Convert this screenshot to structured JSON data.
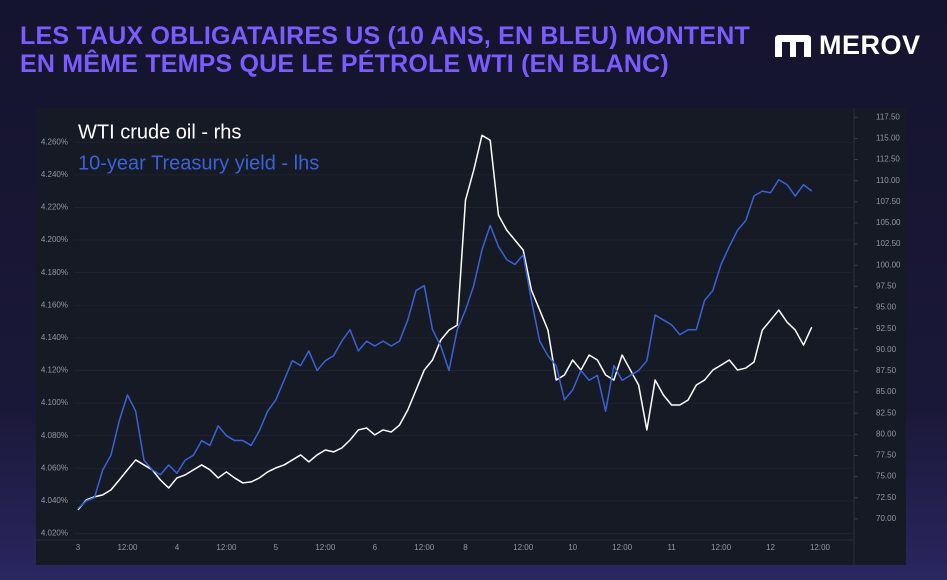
{
  "header": {
    "title": "LES TAUX OBLIGATAIRES US (10 ANS, EN BLEU) MONTENT EN MÊME TEMPS QUE LE PÉTROLE WTI (EN BLANC)",
    "logo": "MEROV"
  },
  "chart_data": {
    "type": "line",
    "categories": [
      "3",
      null,
      null,
      null,
      null,
      null,
      "12:00",
      null,
      null,
      null,
      null,
      null,
      "4",
      null,
      null,
      null,
      null,
      null,
      "12:00",
      null,
      null,
      null,
      null,
      null,
      "5",
      null,
      null,
      null,
      null,
      null,
      "12:00",
      null,
      null,
      null,
      null,
      null,
      "6",
      null,
      null,
      null,
      null,
      null,
      "12:00",
      null,
      null,
      null,
      null,
      "8",
      null,
      null,
      null,
      null,
      null,
      null,
      "12:00",
      null,
      null,
      null,
      null,
      null,
      "10",
      null,
      null,
      null,
      null,
      null,
      "12:00",
      null,
      null,
      null,
      null,
      null,
      "11",
      null,
      null,
      null,
      null,
      null,
      "12:00",
      null,
      null,
      null,
      null,
      null,
      "12",
      null,
      null,
      null,
      null,
      null,
      "12:00"
    ],
    "series": [
      {
        "name": "WTI crude oil - rhs",
        "color": "#ffffff",
        "axis": "y2",
        "values": [
          71.06,
          72.25,
          72.6,
          72.84,
          73.43,
          74.6,
          75.8,
          76.97,
          76.38,
          75.8,
          74.6,
          73.66,
          74.84,
          75.2,
          75.8,
          76.38,
          75.8,
          74.84,
          75.55,
          74.84,
          74.25,
          74.37,
          74.84,
          75.55,
          76.03,
          76.38,
          76.97,
          77.56,
          76.74,
          77.56,
          78.15,
          77.92,
          78.39,
          79.33,
          80.52,
          80.75,
          79.93,
          80.52,
          80.28,
          81.1,
          82.88,
          85.24,
          87.6,
          88.79,
          91.15,
          92.33,
          92.92,
          107.7,
          111.24,
          115.37,
          114.78,
          105.92,
          104.15,
          102.97,
          101.79,
          97.06,
          94.7,
          92.33,
          86.42,
          87.02,
          88.79,
          87.6,
          89.38,
          88.79,
          87.02,
          86.42,
          89.38,
          87.6,
          85.83,
          80.52,
          86.42,
          84.65,
          83.47,
          83.47,
          84.06,
          85.83,
          86.42,
          87.6,
          88.19,
          88.79,
          87.6,
          87.84,
          88.55,
          92.33,
          93.5,
          94.7,
          93.28,
          92.33,
          90.56,
          92.69,
          null
        ]
      },
      {
        "name": "10-year Treasury yield - lhs",
        "color": "#3a62d6",
        "values": [
          4.0353,
          4.04,
          4.042,
          4.059,
          4.068,
          4.089,
          4.105,
          4.095,
          4.065,
          4.059,
          4.056,
          4.062,
          4.057,
          4.065,
          4.068,
          4.077,
          4.074,
          4.086,
          4.08,
          4.077,
          4.077,
          4.074,
          4.083,
          4.095,
          4.102,
          4.114,
          4.126,
          4.123,
          4.132,
          4.12,
          4.126,
          4.129,
          4.138,
          4.145,
          4.132,
          4.138,
          4.135,
          4.138,
          4.135,
          4.138,
          4.151,
          4.169,
          4.172,
          4.145,
          4.135,
          4.12,
          4.145,
          4.157,
          4.172,
          4.194,
          4.209,
          4.196,
          4.188,
          4.185,
          4.191,
          4.163,
          4.138,
          4.129,
          4.123,
          4.102,
          4.108,
          4.12,
          4.114,
          4.117,
          4.095,
          4.123,
          4.114,
          4.117,
          4.12,
          4.126,
          4.154,
          4.151,
          4.148,
          4.142,
          4.145,
          4.145,
          4.163,
          4.169,
          4.185,
          4.196,
          4.206,
          4.212,
          4.227,
          4.23,
          4.229,
          4.237,
          4.234,
          4.227,
          4.234,
          4.23,
          null
        ]
      }
    ],
    "ylim": [
      4.016,
      4.281
    ],
    "yticks": [
      {
        "value": 4.02,
        "label": "4.020%"
      },
      {
        "value": 4.04,
        "label": "4.040%"
      },
      {
        "value": 4.06,
        "label": "4.060%"
      },
      {
        "value": 4.08,
        "label": "4.080%"
      },
      {
        "value": 4.1,
        "label": "4.100%"
      },
      {
        "value": 4.12,
        "label": "4.120%"
      },
      {
        "value": 4.14,
        "label": "4.140%"
      },
      {
        "value": 4.16,
        "label": "4.160%"
      },
      {
        "value": 4.18,
        "label": "4.180%"
      },
      {
        "value": 4.2,
        "label": "4.200%"
      },
      {
        "value": 4.22,
        "label": "4.220%"
      },
      {
        "value": 4.24,
        "label": "4.240%"
      },
      {
        "value": 4.26,
        "label": "4.260%"
      }
    ],
    "y2lim": [
      67.5,
      118.6
    ],
    "y2ticks": [
      {
        "value": 70,
        "label": "70.00"
      },
      {
        "value": 72.5,
        "label": "72.50"
      },
      {
        "value": 75,
        "label": "75.00"
      },
      {
        "value": 77.5,
        "label": "77.50"
      },
      {
        "value": 80,
        "label": "80.00"
      },
      {
        "value": 82.5,
        "label": "82.50"
      },
      {
        "value": 85,
        "label": "85.00"
      },
      {
        "value": 87.5,
        "label": "87.50"
      },
      {
        "value": 90,
        "label": "90.00"
      },
      {
        "value": 92.5,
        "label": "92.50"
      },
      {
        "value": 95,
        "label": "95.00"
      },
      {
        "value": 97.5,
        "label": "97.50"
      },
      {
        "value": 100,
        "label": "100.00"
      },
      {
        "value": 102.5,
        "label": "102.50"
      },
      {
        "value": 105,
        "label": "105.00"
      },
      {
        "value": 107.5,
        "label": "107.50"
      },
      {
        "value": 110,
        "label": "110.00"
      },
      {
        "value": 112.5,
        "label": "112.50"
      },
      {
        "value": 115,
        "label": "115.00"
      },
      {
        "value": 117.5,
        "label": "117.50"
      }
    ],
    "grid": true
  }
}
